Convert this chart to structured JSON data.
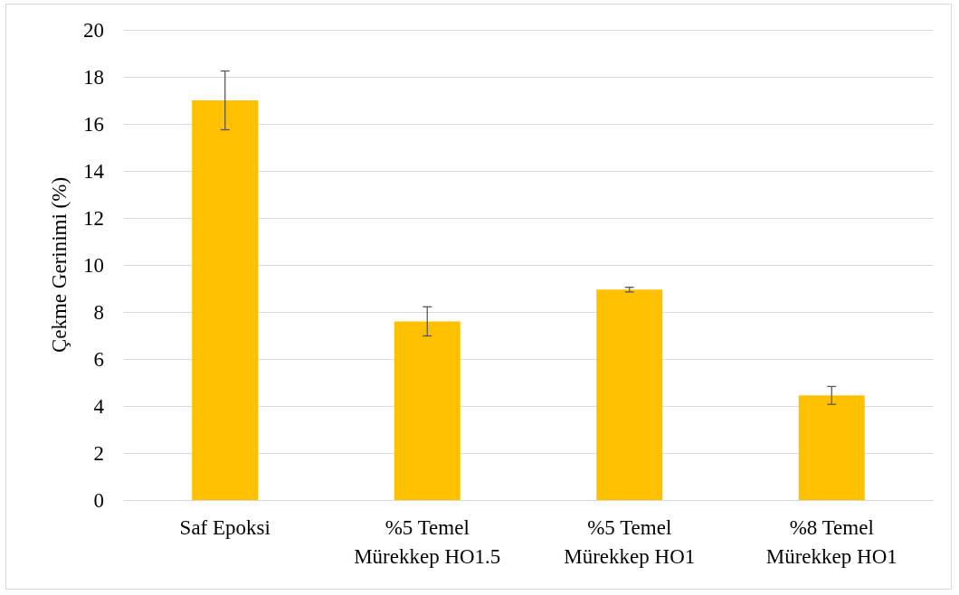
{
  "chart_data": {
    "type": "bar",
    "ylabel": "Çekme Gerinimi (%)",
    "categories": [
      "Saf Epoksi",
      "%5 Temel\nMürekkep HO1.5",
      "%5 Temel\nMürekkep HO1",
      "%8 Temel\nMürekkep HO1"
    ],
    "values": [
      17.0,
      7.6,
      8.95,
      4.45
    ],
    "errors": [
      1.25,
      0.62,
      0.1,
      0.38
    ],
    "color": "#ffc000",
    "ylim": [
      0,
      20
    ],
    "yticks": [
      0,
      2,
      4,
      6,
      8,
      10,
      12,
      14,
      16,
      18,
      20
    ],
    "grid": "y"
  }
}
